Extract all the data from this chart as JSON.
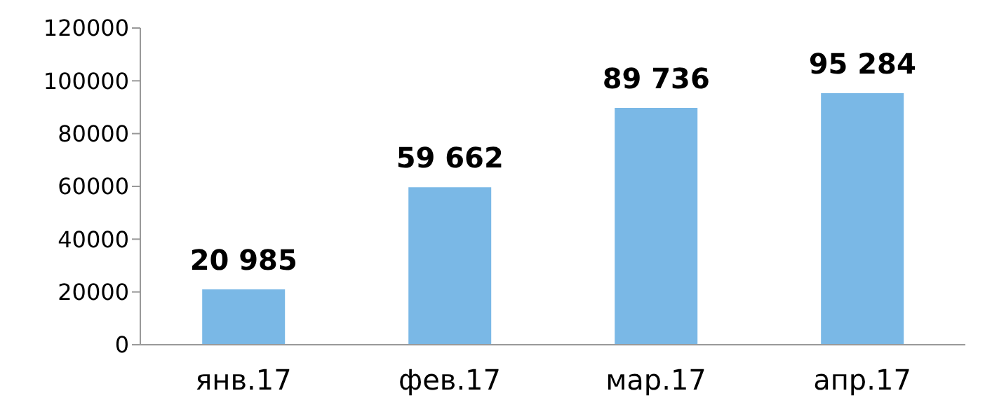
{
  "chart_data": {
    "type": "bar",
    "categories": [
      "янв.17",
      "фев.17",
      "мар.17",
      "апр.17"
    ],
    "values": [
      20985,
      59662,
      89736,
      95284
    ],
    "value_labels": [
      "20 985",
      "59 662",
      "89 736",
      "95 284"
    ],
    "color": "#7ab8e6",
    "ylim": [
      0,
      120000
    ],
    "yticks": [
      0,
      20000,
      40000,
      60000,
      80000,
      100000,
      120000
    ],
    "grid": false,
    "legend": false
  }
}
